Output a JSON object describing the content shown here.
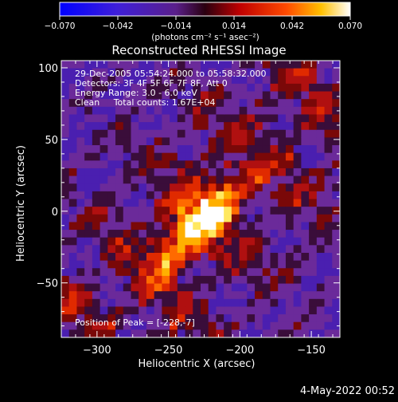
{
  "colorbar": {
    "ticks": [
      "−0.070",
      "−0.042",
      "−0.014",
      "0.014",
      "0.042",
      "0.070"
    ],
    "unit_label": "(photons cm⁻² s⁻¹ asec⁻²)"
  },
  "chart_data": {
    "type": "heatmap",
    "title": "Reconstructed RHESSI Image",
    "xlabel": "Heliocentric X (arcsec)",
    "ylabel": "Heliocentric Y (arcsec)",
    "xlim": [
      -325,
      -130
    ],
    "ylim": [
      -88,
      105
    ],
    "x_ticks": [
      -300,
      -250,
      -200,
      -150
    ],
    "y_ticks": [
      -50,
      0,
      50,
      100
    ],
    "colorscale_range": [
      -0.07,
      0.07
    ],
    "peak": [
      -228,
      -7
    ],
    "info_lines": [
      "29-Dec-2005 05:54:24.000 to 05:58:32.000",
      "Detectors: 3F 4F 5F 6F 7F 8F, Att 0",
      "Energy Range: 3.0 - 6.0 keV",
      "Clean     Total counts: 1.67E+04"
    ],
    "peak_label": "Position of Peak = [-228,-7]",
    "colors": {
      "low": "#0000ff",
      "mid_low": "#7a2bb5",
      "zero": "#000000",
      "mid": "#ff0000",
      "high": "#ffff00",
      "max": "#ffffff"
    }
  },
  "footer": {
    "date": "4-May-2022 00:52"
  }
}
